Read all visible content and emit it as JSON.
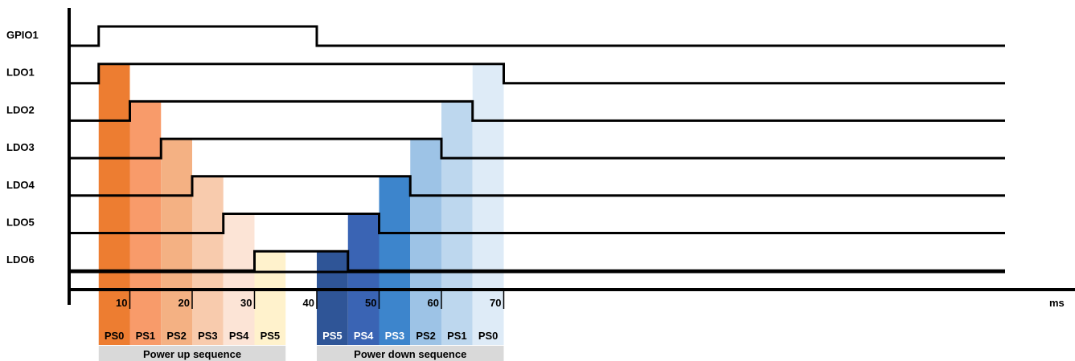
{
  "signals": [
    {
      "name": "GPIO1",
      "on": 5,
      "off": 40
    },
    {
      "name": "LDO1",
      "on": 5,
      "off": 70
    },
    {
      "name": "LDO2",
      "on": 10,
      "off": 65
    },
    {
      "name": "LDO3",
      "on": 15,
      "off": 60
    },
    {
      "name": "LDO4",
      "on": 20,
      "off": 55
    },
    {
      "name": "LDO5",
      "on": 25,
      "off": 50
    },
    {
      "name": "LDO6",
      "on": 30,
      "off": 45
    }
  ],
  "axis": {
    "ticks": [
      "10",
      "20",
      "30",
      "40",
      "50",
      "60",
      "70"
    ],
    "tick_values": [
      10,
      20,
      30,
      40,
      50,
      60,
      70
    ],
    "unit": "ms"
  },
  "power_states": [
    {
      "label": "PS0",
      "start": 5,
      "end": 10,
      "color": "#ED7D31",
      "text_color": "#000000",
      "top_row": 1
    },
    {
      "label": "PS1",
      "start": 10,
      "end": 15,
      "color": "#F89B6A",
      "text_color": "#000000",
      "top_row": 2
    },
    {
      "label": "PS2",
      "start": 15,
      "end": 20,
      "color": "#F4B183",
      "text_color": "#000000",
      "top_row": 3
    },
    {
      "label": "PS3",
      "start": 20,
      "end": 25,
      "color": "#F8CBAD",
      "text_color": "#000000",
      "top_row": 4
    },
    {
      "label": "PS4",
      "start": 25,
      "end": 30,
      "color": "#FCE4D6",
      "text_color": "#000000",
      "top_row": 5
    },
    {
      "label": "PS5",
      "start": 30,
      "end": 35,
      "color": "#FFF2CC",
      "text_color": "#000000",
      "top_row": 6
    },
    {
      "label": "PS5",
      "start": 40,
      "end": 45,
      "color": "#2F5597",
      "text_color": "#ffffff",
      "top_row": 6
    },
    {
      "label": "PS4",
      "start": 45,
      "end": 50,
      "color": "#3A64B4",
      "text_color": "#ffffff",
      "top_row": 5
    },
    {
      "label": "PS3",
      "start": 50,
      "end": 55,
      "color": "#3D85CC",
      "text_color": "#ffffff",
      "top_row": 4
    },
    {
      "label": "PS2",
      "start": 55,
      "end": 60,
      "color": "#9DC3E6",
      "text_color": "#000000",
      "top_row": 3
    },
    {
      "label": "PS1",
      "start": 60,
      "end": 65,
      "color": "#BDD7EE",
      "text_color": "#000000",
      "top_row": 2
    },
    {
      "label": "PS0",
      "start": 65,
      "end": 70,
      "color": "#DEEBF7",
      "text_color": "#000000",
      "top_row": 1
    }
  ],
  "sequences": [
    {
      "label": "Power up sequence",
      "start": 5,
      "end": 35
    },
    {
      "label": "Power down sequence",
      "start": 40,
      "end": 70
    }
  ]
}
